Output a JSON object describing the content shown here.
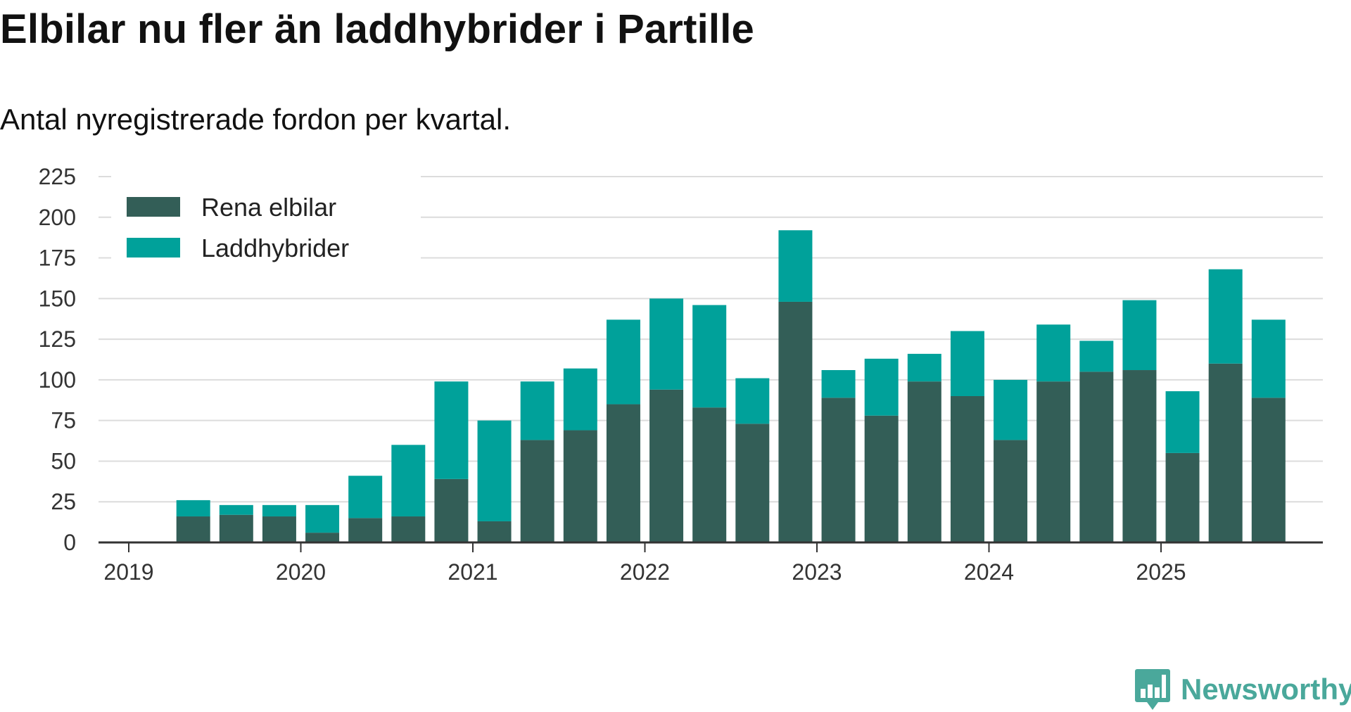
{
  "title": "Elbilar nu fler än laddhybrider i Partille",
  "subtitle": "Antal nyregistrerade fordon per kvartal.",
  "brand": {
    "name": "Newsworthy",
    "icon": "bar-chart-speech-bubble-icon",
    "color": "#4aa89b"
  },
  "chart_data": {
    "type": "bar",
    "stacked": true,
    "title": "Elbilar nu fler än laddhybrider i Partille",
    "subtitle": "Antal nyregistrerade fordon per kvartal.",
    "xlabel": "",
    "ylabel": "",
    "ylim": [
      0,
      225
    ],
    "yticks": [
      0,
      25,
      50,
      75,
      100,
      125,
      150,
      175,
      200,
      225
    ],
    "xtick_labels": [
      "2019",
      "2020",
      "2021",
      "2022",
      "2023",
      "2024",
      "2025"
    ],
    "grid": true,
    "legend_placement": "top-left",
    "categories": [
      "2019 Q2",
      "2019 Q3",
      "2019 Q4",
      "2020 Q1",
      "2020 Q2",
      "2020 Q3",
      "2020 Q4",
      "2021 Q1",
      "2021 Q2",
      "2021 Q3",
      "2021 Q4",
      "2022 Q1",
      "2022 Q2",
      "2022 Q3",
      "2022 Q4",
      "2023 Q1",
      "2023 Q2",
      "2023 Q3",
      "2023 Q4",
      "2024 Q1",
      "2024 Q2",
      "2024 Q3",
      "2024 Q4",
      "2025 Q1",
      "2025 Q2",
      "2025 Q3"
    ],
    "series": [
      {
        "name": "Rena elbilar",
        "color": "#335e57",
        "values": [
          16,
          17,
          16,
          6,
          15,
          16,
          39,
          13,
          63,
          69,
          85,
          94,
          83,
          73,
          148,
          89,
          78,
          99,
          90,
          63,
          99,
          105,
          106,
          55,
          110,
          89
        ]
      },
      {
        "name": "Laddhybrider",
        "color": "#00a19a",
        "values": [
          10,
          6,
          7,
          17,
          26,
          44,
          60,
          62,
          36,
          38,
          52,
          56,
          63,
          28,
          44,
          17,
          35,
          17,
          40,
          37,
          35,
          19,
          43,
          38,
          58,
          48
        ]
      }
    ]
  }
}
